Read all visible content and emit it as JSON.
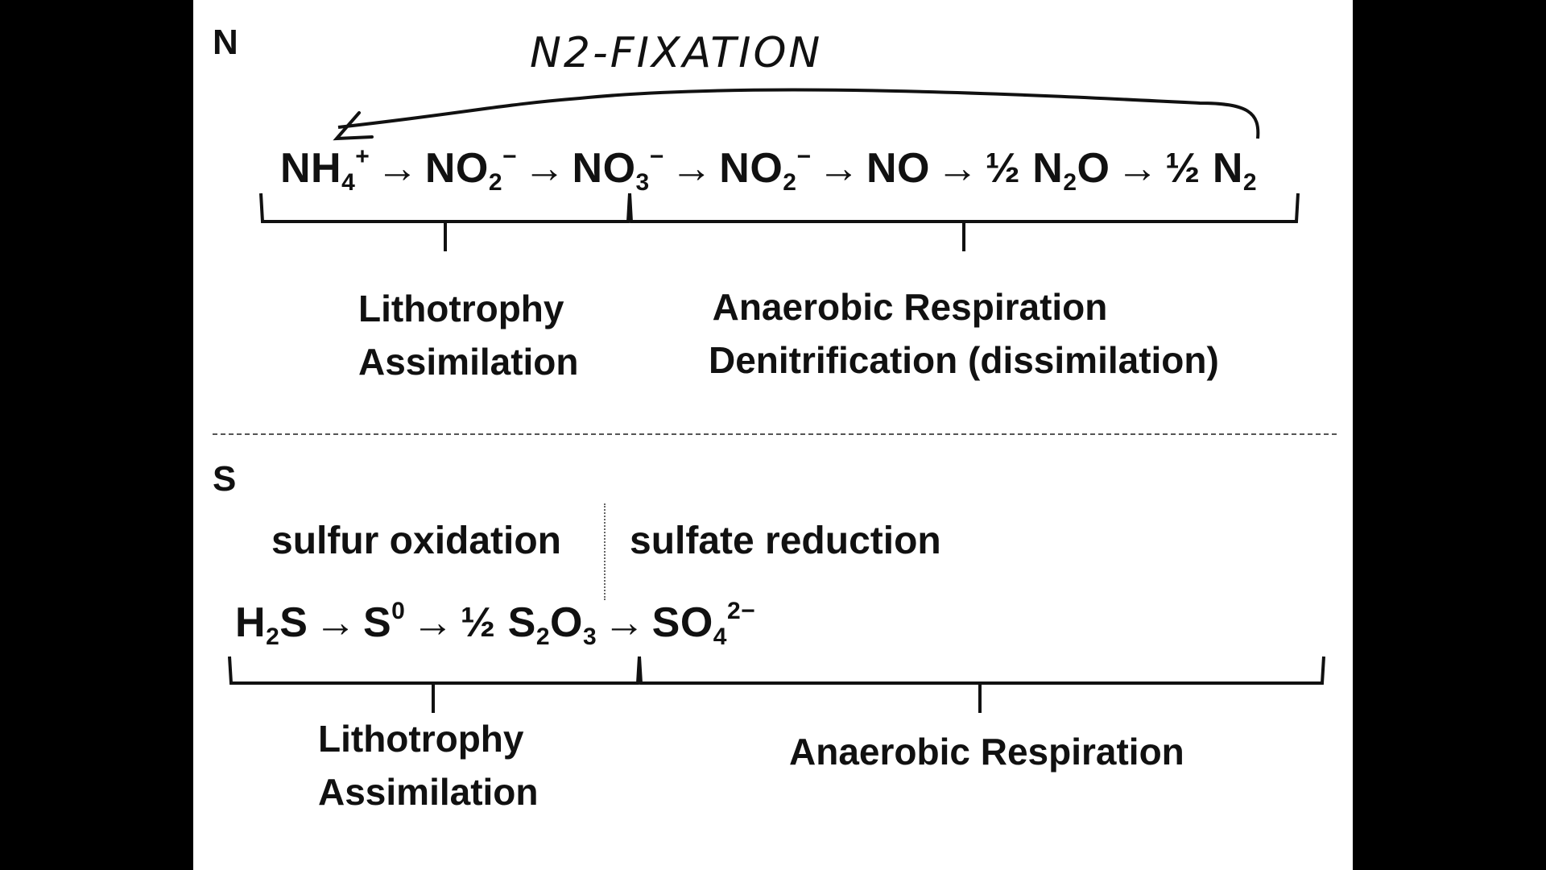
{
  "nitrogen": {
    "letter": "N",
    "annotation": "N2-FIXATION",
    "equation": [
      {
        "sp": "NH",
        "sub": "4",
        "sup": "+"
      },
      {
        "arrow": "→"
      },
      {
        "sp": "NO",
        "sub": "2",
        "sup": "−"
      },
      {
        "arrow": "→"
      },
      {
        "sp": "NO",
        "sub": "3",
        "sup": "−"
      },
      {
        "arrow": "→"
      },
      {
        "sp": "NO",
        "sub": "2",
        "sup": "−"
      },
      {
        "arrow": "→"
      },
      {
        "sp": "NO"
      },
      {
        "arrow": "→"
      },
      {
        "sp": "½ N",
        "sub": "2",
        "sp2": "O"
      },
      {
        "arrow": "→"
      },
      {
        "sp": "½ N",
        "sub": "2"
      }
    ],
    "left_labels": [
      "Lithotrophy",
      "Assimilation"
    ],
    "right_labels": [
      "Anaerobic Respiration",
      "Denitrification (dissimilation)"
    ]
  },
  "sulfur": {
    "letter": "S",
    "heading_left": "sulfur oxidation",
    "heading_right": "sulfate reduction",
    "equation": [
      {
        "sp": "H",
        "sub": "2",
        "sp2": "S"
      },
      {
        "arrow": "→"
      },
      {
        "sp": "S",
        "sup": "0"
      },
      {
        "arrow": "→"
      },
      {
        "sp": "½ S",
        "sub": "2",
        "sp2": "O",
        "sub2": "3"
      },
      {
        "arrow": "→"
      },
      {
        "sp": "SO",
        "sub": "4",
        "sup": "2−"
      }
    ],
    "left_labels": [
      "Lithotrophy",
      "Assimilation"
    ],
    "right_label": "Anaerobic Respiration"
  }
}
